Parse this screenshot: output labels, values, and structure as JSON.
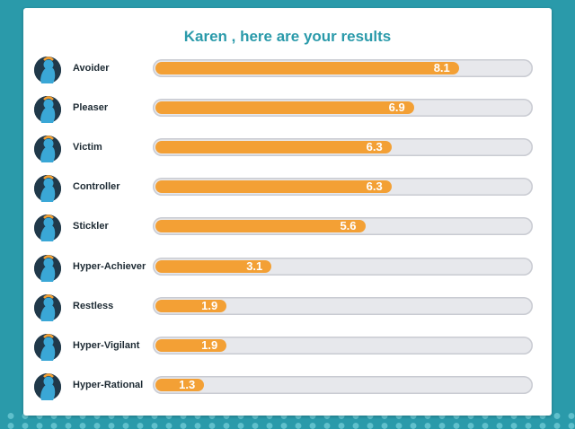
{
  "header": {
    "title": "Karen , here are your results"
  },
  "results": [
    {
      "label": "Avoider",
      "value": "8.1",
      "score": 8.1,
      "icon": "avoider-avatar-icon"
    },
    {
      "label": "Pleaser",
      "value": "6.9",
      "score": 6.9,
      "icon": "pleaser-avatar-icon"
    },
    {
      "label": "Victim",
      "value": "6.3",
      "score": 6.3,
      "icon": "victim-avatar-icon"
    },
    {
      "label": "Controller",
      "value": "6.3",
      "score": 6.3,
      "icon": "controller-avatar-icon"
    },
    {
      "label": "Stickler",
      "value": "5.6",
      "score": 5.6,
      "icon": "stickler-avatar-icon"
    },
    {
      "label": "Hyper-Achiever",
      "value": "3.1",
      "score": 3.1,
      "icon": "hyper-achiever-avatar-icon"
    },
    {
      "label": "Restless",
      "value": "1.9",
      "score": 1.9,
      "icon": "restless-avatar-icon"
    },
    {
      "label": "Hyper-Vigilant",
      "value": "1.9",
      "score": 1.9,
      "icon": "hyper-vigilant-avatar-icon"
    },
    {
      "label": "Hyper-Rational",
      "value": "1.3",
      "score": 1.3,
      "icon": "hyper-rational-avatar-icon"
    }
  ],
  "scale": {
    "max": 10
  },
  "colors": {
    "background": "#2a9aaa",
    "bar_fill": "#f3a035",
    "bar_track": "#e7e8ec",
    "title": "#2a9aaa",
    "avatar": "#20394a",
    "figure": "#3aa7d6"
  }
}
